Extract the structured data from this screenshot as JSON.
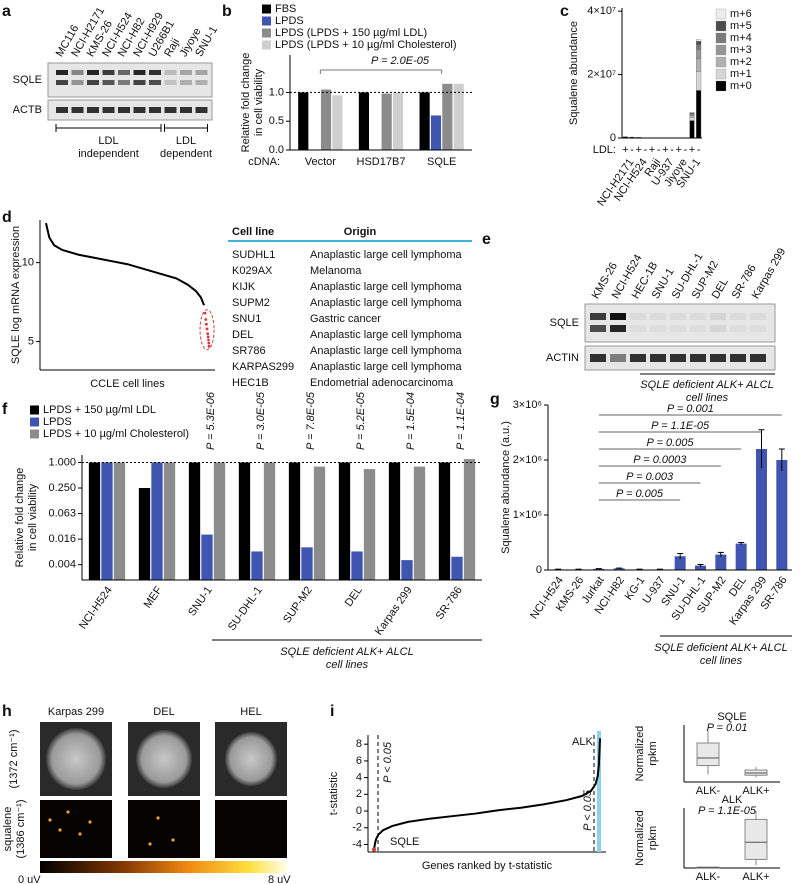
{
  "panel_labels": [
    "a",
    "b",
    "c",
    "d",
    "e",
    "f",
    "g",
    "h",
    "i"
  ],
  "blots": [
    {
      "lanes": [
        "MC116",
        "NCI-H2171",
        "KMS-26",
        "NCI-H524",
        "NCI-H82",
        "NCI-H929",
        "U266B1",
        "Raji",
        "Jiyoye",
        "SNU-1"
      ],
      "rows": [
        "SQLE",
        "ACTB"
      ],
      "groups": [
        {
          "label": [
            "LDL",
            "independent"
          ]
        },
        {
          "label": [
            "LDL",
            "dependent"
          ]
        }
      ]
    },
    {
      "lanes": [
        "KMS-26",
        "NCI-H524",
        "HEC-1B",
        "SNU-1",
        "SU-DHL-1",
        "SUP-M2",
        "DEL",
        "SR-786",
        "Karpas 299"
      ],
      "rows": [
        "SQLE",
        "ACTIN"
      ],
      "note": [
        "SQLE deficient ALK+ ALCL",
        "cell lines"
      ]
    }
  ],
  "table": {
    "header": [
      "Cell line",
      "Origin"
    ],
    "rows": [
      [
        "SUDHL1",
        "Anaplastic large cell lymphoma"
      ],
      [
        "K029AX",
        "Melanoma"
      ],
      [
        "KIJK",
        "Anaplastic large cell lymphoma"
      ],
      [
        "SUPM2",
        "Anaplastic large cell lymphoma"
      ],
      [
        "SNU1",
        "Gastric cancer"
      ],
      [
        "DEL",
        "Anaplastic large cell lymphoma"
      ],
      [
        "SR786",
        "Anaplastic large cell lymphoma"
      ],
      [
        "KARPAS299",
        "Anaplastic large cell lymphoma"
      ],
      [
        "HEC1B",
        "Endometrial adenocarcinoma"
      ]
    ]
  },
  "images": {
    "columns": [
      "Karpas 299",
      "DEL",
      "HEL"
    ],
    "rows": [
      [
        "(1372 cm⁻¹)"
      ],
      [
        "squalene",
        "(1386 cm⁻¹)"
      ]
    ],
    "colorbar": [
      "0 uV",
      "8 uV"
    ]
  },
  "chart_data": [
    {
      "type": "bar",
      "categories": [
        "Vector",
        "HSD17B7",
        "SQLE"
      ],
      "xlabel": "cDNA:",
      "ylabel": [
        "Relative fold change",
        "in cell viability"
      ],
      "series": [
        {
          "name": "FBS",
          "color": "#000000",
          "values": [
            1.0,
            1.0,
            1.0
          ]
        },
        {
          "name": "LPDS",
          "color": "#3f55b0",
          "values": [
            null,
            null,
            0.6
          ]
        },
        {
          "name": "LPDS (LPDS + 150 µg/ml LDL)",
          "color": "#8c8c8c",
          "values": [
            1.05,
            0.98,
            1.15
          ]
        },
        {
          "name": "LPDS (LPDS + 10 µg/ml Cholesterol)",
          "color": "#cfcfcf",
          "values": [
            0.95,
            1.0,
            1.15
          ]
        }
      ],
      "ylim": [
        0,
        1.65
      ],
      "yticks": [
        {
          "value": 0,
          "label": "0.0"
        },
        {
          "value": 0.5,
          "label": "0.5"
        },
        {
          "value": 1,
          "label": "1.0"
        }
      ],
      "refline": 1,
      "annotation": "P = 2.0E-05"
    },
    {
      "type": "stacked_bar",
      "categories": [
        "+",
        "-",
        "+",
        "-",
        "+",
        "-",
        "+",
        "-",
        "+",
        "-",
        "+",
        "-"
      ],
      "xlabel": "LDL:",
      "groups": [
        "NCI-H2171",
        "NCI-H524",
        "Raji",
        "U-937",
        "Jiyoye",
        "SNU-1"
      ],
      "ylabel": [
        "Squalene abundance"
      ],
      "series": [
        {
          "name": "m+0",
          "color": "#000000",
          "values": [
            400000,
            300000,
            200000,
            0,
            0,
            0,
            0,
            0,
            0,
            0,
            5500000,
            15000000
          ]
        },
        {
          "name": "m+1",
          "color": "#d6d6d6",
          "values": [
            0,
            0,
            0,
            0,
            0,
            0,
            0,
            0,
            0,
            0,
            1000000,
            6000000
          ]
        },
        {
          "name": "m+2",
          "color": "#b0b0b0",
          "values": [
            0,
            0,
            0,
            0,
            0,
            0,
            0,
            0,
            0,
            0,
            500000,
            4000000
          ]
        },
        {
          "name": "m+3",
          "color": "#969696",
          "values": [
            0,
            0,
            0,
            0,
            0,
            0,
            0,
            0,
            0,
            0,
            500000,
            3000000
          ]
        },
        {
          "name": "m+4",
          "color": "#7a7a7a",
          "values": [
            0,
            0,
            0,
            0,
            0,
            0,
            0,
            0,
            0,
            0,
            300000,
            1500000
          ]
        },
        {
          "name": "m+5",
          "color": "#4d4d4d",
          "values": [
            0,
            0,
            0,
            0,
            0,
            0,
            0,
            0,
            0,
            0,
            100000,
            1000000
          ]
        },
        {
          "name": "m+6",
          "color": "#ececec",
          "values": [
            0,
            0,
            0,
            0,
            0,
            0,
            0,
            0,
            0,
            0,
            100000,
            500000
          ]
        }
      ],
      "ylim": [
        0,
        41000000
      ],
      "yticks": [
        0,
        {
          "value": 20000000,
          "label": "2×10⁷"
        },
        {
          "value": 40000000,
          "label": "4×10⁷"
        }
      ]
    },
    {
      "type": "line",
      "xlabel": "CCLE cell lines",
      "ylabel": [
        "SQLE log mRNA expression"
      ],
      "x": [
        0,
        2,
        5,
        10,
        20,
        30,
        40,
        50,
        60,
        70,
        80,
        87,
        92,
        95,
        97,
        97.6,
        98,
        98.4,
        98.8,
        99.2,
        99.5,
        99.7,
        99.9,
        100
      ],
      "series": [
        {
          "color": "#000000",
          "style": "line",
          "values": [
            12.5,
            11.6,
            11.1,
            10.8,
            10.5,
            10.3,
            10.1,
            9.9,
            9.6,
            9.3,
            9.0,
            8.6,
            8.2,
            7.8,
            7.3,
            null,
            null,
            null,
            null,
            null,
            null,
            null,
            null,
            null
          ]
        },
        {
          "color": "#d83a3a",
          "style": "points",
          "values": [
            null,
            null,
            null,
            null,
            null,
            null,
            null,
            null,
            null,
            null,
            null,
            null,
            null,
            null,
            null,
            6.8,
            6.4,
            6.1,
            5.8,
            5.5,
            5.3,
            5.1,
            4.9,
            4.7
          ]
        }
      ],
      "xlim": [
        0,
        100
      ],
      "ylim": [
        3.2,
        12.7
      ],
      "yticks": [
        5,
        10
      ]
    },
    {
      "type": "bar",
      "log": true,
      "categories": [
        "NCI-H524",
        "MEF",
        "SNU-1",
        "SU-DHL-1",
        "SUP-M2",
        "DEL",
        "Karpas 299",
        "SR-786"
      ],
      "ylabel": [
        "Relative fold change",
        "in cell viability"
      ],
      "series": [
        {
          "name": "LPDS + 150 µg/ml LDL",
          "color": "#000000",
          "values": [
            1.0,
            0.25,
            1.0,
            1.0,
            1.0,
            1.0,
            1.0,
            1.0
          ]
        },
        {
          "name": "LPDS",
          "color": "#3f55b0",
          "values": [
            1.0,
            1.0,
            0.02,
            0.008,
            0.01,
            0.008,
            0.005,
            0.006
          ]
        },
        {
          "name": "LPDS + 10 µg/ml Cholesterol)",
          "color": "#8c8c8c",
          "values": [
            1.0,
            1.0,
            1.0,
            1.0,
            0.8,
            0.7,
            0.8,
            1.2
          ]
        }
      ],
      "ylim": [
        0.0017,
        1.5
      ],
      "yticks": [
        {
          "value": 1,
          "label": "1.000"
        },
        {
          "value": 0.25,
          "label": "0.250"
        },
        {
          "value": 0.0625,
          "label": "0.063"
        },
        {
          "value": 0.015625,
          "label": "0.016"
        },
        {
          "value": 0.00390625,
          "label": "0.004"
        }
      ],
      "refline": 1,
      "annotations": [
        null,
        null,
        "P = 5.3E-06",
        "P = 3.0E-05",
        "P = 7.8E-05",
        "P = 5.2E-05",
        "P = 1.5E-04",
        "P = 1.1E-04"
      ],
      "note": [
        "SQLE deficient ALK+ ALCL",
        "cell lines"
      ]
    },
    {
      "type": "bar",
      "categories": [
        "NCI-H524",
        "KMS-26",
        "Jurkat",
        "NCI-H82",
        "KG-1",
        "U-937",
        "SNU-1",
        "SU-DHL-1",
        "SUP-M2",
        "DEL",
        "Karpas 299",
        "SR-786"
      ],
      "ylabel": [
        "Squalene abundance (a.u.)"
      ],
      "color": "#3f55b0",
      "values": [
        10000,
        10000,
        20000,
        30000,
        10000,
        10000,
        250000,
        80000,
        280000,
        480000,
        2200000,
        2000000
      ],
      "errors": [
        5000,
        5000,
        5000,
        5000,
        5000,
        5000,
        50000,
        20000,
        40000,
        20000,
        350000,
        200000
      ],
      "ylim": [
        0,
        3000000
      ],
      "yticks": [
        0,
        {
          "value": 1000000,
          "label": "1×10⁶"
        },
        {
          "value": 2000000,
          "label": "2×10⁶"
        },
        {
          "value": 3000000,
          "label": "3×10⁶"
        }
      ],
      "annotations": [
        "P = 0.001",
        "P = 1.1E-05",
        "P = 0.005",
        "P = 0.0003",
        "P = 0.003",
        "P = 0.005"
      ],
      "note": [
        "SQLE deficient ALK+ ALCL",
        "cell lines"
      ]
    },
    {
      "type": "line",
      "xlabel": "Genes ranked by t-statistic",
      "ylabel": [
        "t-statistic"
      ],
      "x": [
        0,
        0.5,
        1,
        2,
        4,
        8,
        15,
        25,
        35,
        45,
        50,
        55,
        65,
        75,
        85,
        92,
        96,
        98,
        99,
        99.5,
        100
      ],
      "series": [
        {
          "color": "#000000",
          "style": "line",
          "values": [
            -4.6,
            -3.8,
            -3.3,
            -2.8,
            -2.3,
            -1.8,
            -1.3,
            -0.9,
            -0.6,
            -0.3,
            -0.1,
            0.1,
            0.4,
            0.8,
            1.3,
            1.8,
            2.4,
            3.2,
            4.2,
            5.5,
            8.7
          ]
        }
      ],
      "xlim": [
        0,
        100
      ],
      "ylim": [
        -4.9,
        9.1
      ],
      "yticks": [
        -4,
        -2,
        0,
        2,
        4,
        6,
        8
      ],
      "annotations": [
        "P < 0.05",
        "P < 0.05",
        "SQLE",
        "ALK"
      ]
    },
    {
      "type": "box",
      "title": "SQLE",
      "annotation": "P = 0.01",
      "ylabel": [
        "Normalized",
        "rpkm"
      ],
      "categories": [
        "ALK-",
        "ALK+"
      ],
      "boxes": [
        {
          "min": 5,
          "q1": 11,
          "median": 16,
          "q3": 26,
          "max": 34
        },
        {
          "min": 3,
          "q1": 4.5,
          "median": 6,
          "q3": 8,
          "max": 10
        }
      ],
      "ylim": [
        0,
        38
      ]
    },
    {
      "type": "box",
      "title": "ALK",
      "annotation": "P = 1.1E-05",
      "ylabel": [
        "Normalized",
        "rpkm"
      ],
      "categories": [
        "ALK-",
        "ALK+"
      ],
      "boxes": [
        {
          "min": 0,
          "q1": 0,
          "median": 0.3,
          "q3": 0.6,
          "max": 1
        },
        {
          "min": 2,
          "q1": 6,
          "median": 18,
          "q3": 34,
          "max": 40
        }
      ],
      "ylim": [
        0,
        42
      ]
    }
  ]
}
